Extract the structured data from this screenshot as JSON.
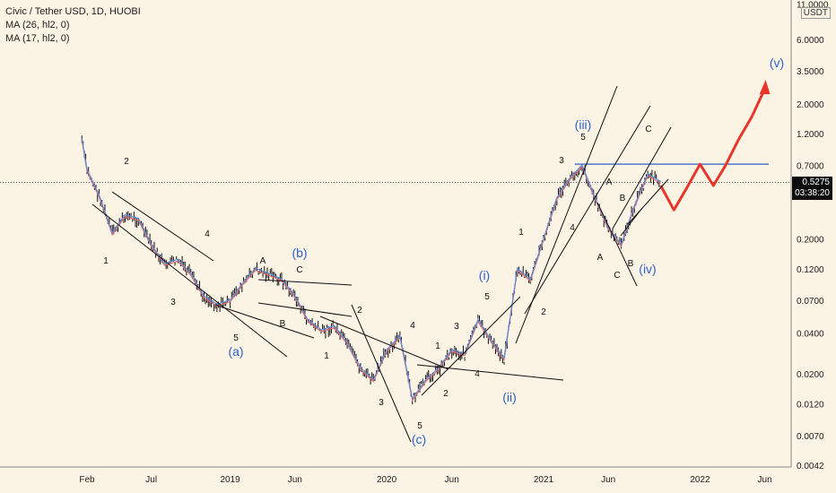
{
  "title": "Civic / Tether USD, 1D, HUOBI",
  "indicators": [
    "MA (26, hl2, 0)",
    "MA (17, hl2, 0)"
  ],
  "unit": "USDT",
  "current_price": "0.5275",
  "countdown": "03:38:20",
  "colors": {
    "background": "#fbf3e4",
    "candles": "#111111",
    "ma_red": "#e06a6a",
    "ma_blue": "#5a8be0",
    "trendline": "#111111",
    "resistance": "#2e62c9",
    "projection": "#e8352a",
    "wave_major": "#2e62c9"
  },
  "chart_data": {
    "type": "line",
    "scale": "log",
    "y_ticks": [
      "11.0000",
      "6.0000",
      "3.5000",
      "2.0000",
      "1.2000",
      "0.7000",
      "0.2000",
      "0.1200",
      "0.0700",
      "0.0400",
      "0.0200",
      "0.0120",
      "0.0070",
      "0.0042"
    ],
    "x_ticks": [
      "Feb",
      "Jul",
      "2019",
      "Jun",
      "2020",
      "Jun",
      "2021",
      "Jun",
      "2022",
      "Jun"
    ],
    "grid": false,
    "series": [
      {
        "values_note": "",
        "x": [
          "2018-01-20",
          "2018-02-01",
          "2018-03-01",
          "2018-04-01",
          "2018-05-01",
          "2018-06-01",
          "2018-07-01",
          "2018-08-01",
          "2018-09-01",
          "2018-10-01",
          "2018-11-01",
          "2018-12-01",
          "2019-01-01",
          "2019-02-01",
          "2019-03-01",
          "2019-04-01",
          "2019-05-01",
          "2019-06-01",
          "2019-07-01",
          "2019-08-01",
          "2019-09-01",
          "2019-10-01",
          "2019-11-01",
          "2019-12-01",
          "2020-01-01",
          "2020-02-01",
          "2020-03-01",
          "2020-04-01",
          "2020-05-01",
          "2020-06-01",
          "2020-07-01",
          "2020-08-01",
          "2020-09-01",
          "2020-10-01",
          "2020-11-01",
          "2020-12-01",
          "2021-01-01",
          "2021-02-01",
          "2021-03-01",
          "2021-04-01",
          "2021-05-01",
          "2021-06-01",
          "2021-07-01",
          "2021-08-01",
          "2021-09-01",
          "2021-10-01"
        ],
        "y": [
          1.1,
          0.65,
          0.42,
          0.22,
          0.3,
          0.28,
          0.18,
          0.13,
          0.14,
          0.11,
          0.075,
          0.065,
          0.07,
          0.095,
          0.12,
          0.11,
          0.1,
          0.075,
          0.05,
          0.042,
          0.045,
          0.034,
          0.022,
          0.018,
          0.03,
          0.038,
          0.013,
          0.018,
          0.022,
          0.03,
          0.028,
          0.05,
          0.035,
          0.026,
          0.12,
          0.1,
          0.2,
          0.4,
          0.55,
          0.7,
          0.4,
          0.24,
          0.18,
          0.35,
          0.6,
          0.5275
        ]
      },
      {
        "x": [
          "2021-10-01",
          "2021-11-01",
          "2021-12-01",
          "2022-01-01",
          "2022-02-01",
          "2022-03-01",
          "2022-04-01",
          "2022-05-01",
          "2022-06-01"
        ],
        "y": [
          0.5,
          0.33,
          0.48,
          0.72,
          0.5,
          0.7,
          1.1,
          1.6,
          2.6
        ]
      }
    ],
    "wave_labels_major": [
      "(a)",
      "(b)",
      "(c)",
      "(i)",
      "(ii)",
      "(iii)",
      "(iv)",
      "(v)"
    ],
    "wave_labels_minor": [
      "1",
      "2",
      "3",
      "4",
      "5",
      "A",
      "B",
      "C",
      "1",
      "2",
      "3",
      "4",
      "5",
      "1",
      "2",
      "3",
      "4",
      "5",
      "1",
      "2",
      "3",
      "4",
      "5",
      "A",
      "B",
      "C",
      "A",
      "B",
      "C"
    ],
    "resistance_level": 0.72
  }
}
